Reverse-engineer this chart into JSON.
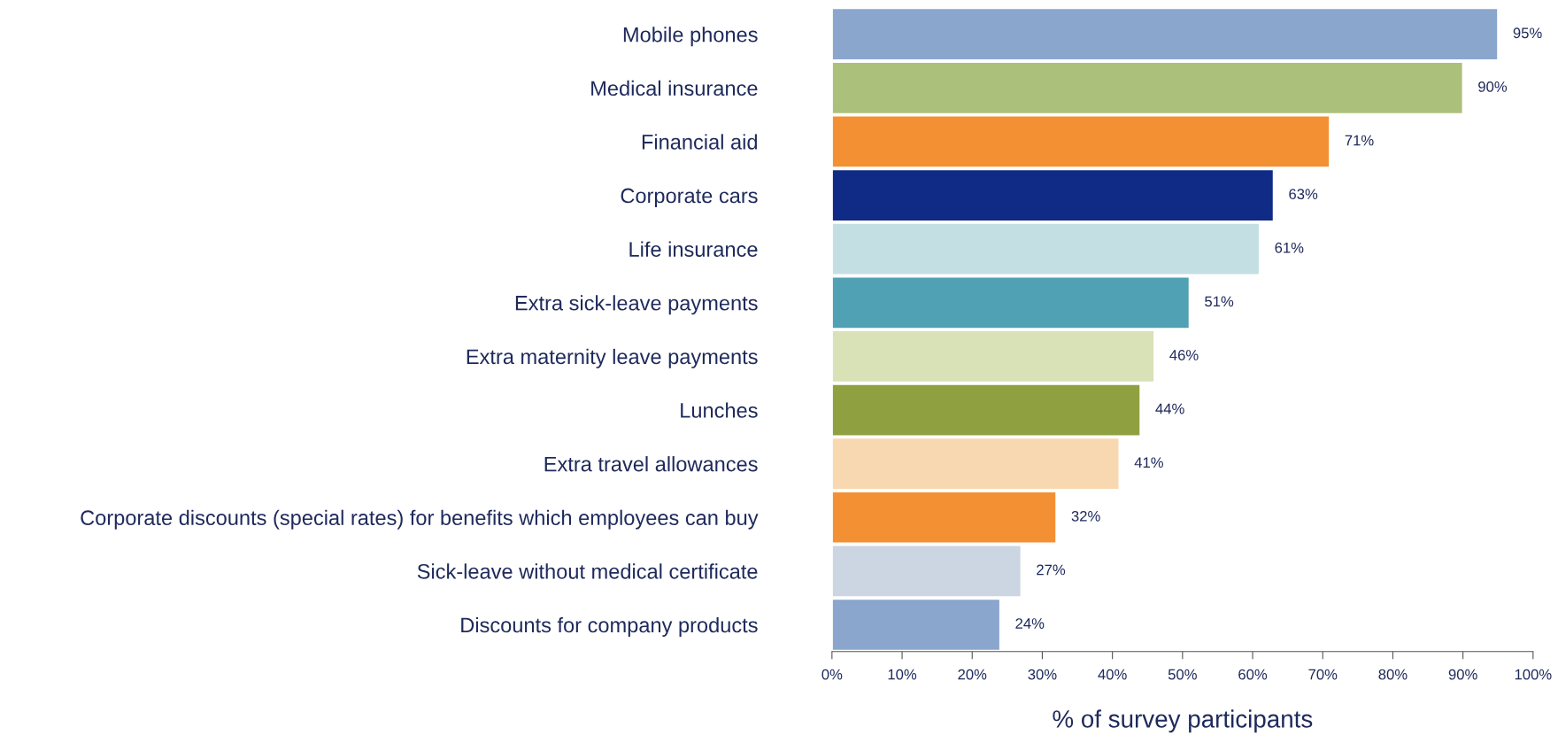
{
  "chart_data": {
    "type": "bar",
    "orientation": "horizontal",
    "xlabel": "% of survey participants",
    "categories": [
      "Mobile phones",
      "Medical insurance",
      "Financial aid",
      "Corporate cars",
      "Life insurance",
      "Extra sick-leave payments",
      "Extra maternity leave payments",
      "Lunches",
      "Extra travel allowances",
      "Corporate discounts (special rates) for benefits which employees can buy",
      "Sick-leave without medical certificate",
      "Discounts for company products"
    ],
    "values": [
      95,
      90,
      71,
      63,
      61,
      51,
      46,
      44,
      41,
      32,
      27,
      24
    ],
    "value_labels": [
      "95%",
      "90%",
      "71%",
      "63%",
      "61%",
      "51%",
      "46%",
      "44%",
      "41%",
      "32%",
      "27%",
      "24%"
    ],
    "colors": [
      "#8aa6cd",
      "#abc07a",
      "#f39034",
      "#0f2b85",
      "#c4dfe3",
      "#4fa1b3",
      "#d9e1b7",
      "#8ea040",
      "#f8d8b0",
      "#f39034",
      "#ccd6e2",
      "#8aa6cd"
    ],
    "xlim": [
      0,
      100
    ],
    "xticks": [
      {
        "value": 0,
        "label": "0%"
      },
      {
        "value": 10,
        "label": "10%"
      },
      {
        "value": 20,
        "label": "20%"
      },
      {
        "value": 30,
        "label": "30%"
      },
      {
        "value": 40,
        "label": "40%"
      },
      {
        "value": 50,
        "label": "50%"
      },
      {
        "value": 60,
        "label": "60%"
      },
      {
        "value": 70,
        "label": "70%"
      },
      {
        "value": 80,
        "label": "80%"
      },
      {
        "value": 90,
        "label": "90%"
      },
      {
        "value": 100,
        "label": "100%"
      }
    ],
    "grid": false,
    "legend": false
  }
}
